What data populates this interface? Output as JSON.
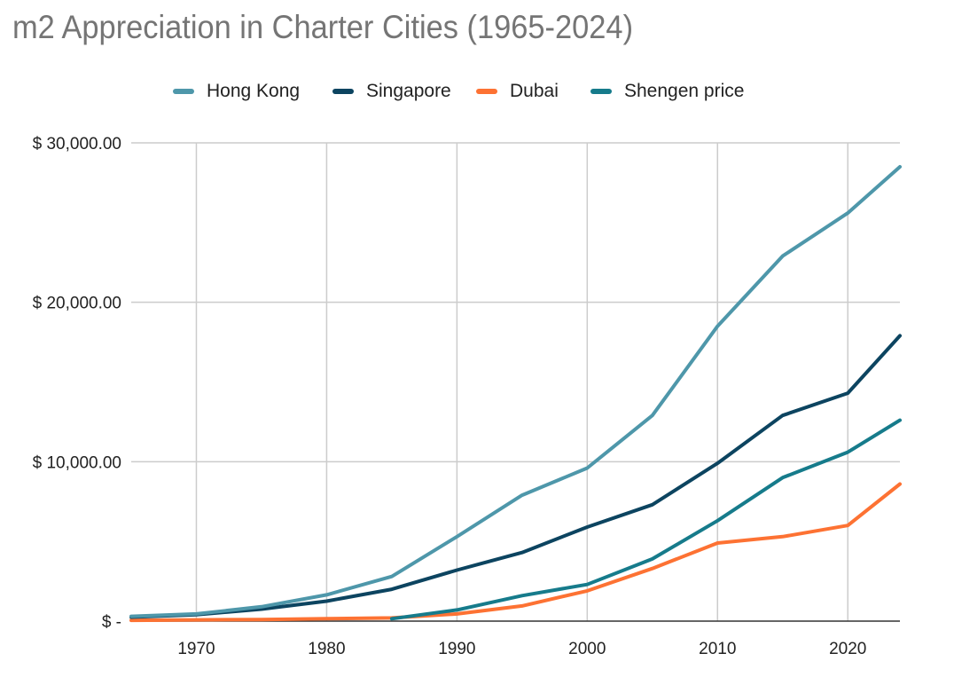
{
  "chart_data": {
    "type": "line",
    "title": "m2 Appreciation in Charter Cities (1965-2024)",
    "xlabel": "",
    "ylabel": "",
    "x": [
      1965,
      1970,
      1975,
      1980,
      1985,
      1990,
      1995,
      2000,
      2005,
      2010,
      2015,
      2020,
      2024
    ],
    "xlim": [
      1965,
      2024
    ],
    "ylim": [
      0,
      30000
    ],
    "xticks": [
      1970,
      1980,
      1990,
      2000,
      2010,
      2020
    ],
    "yticks": [
      0,
      10000,
      20000,
      30000
    ],
    "ytick_labels": [
      "$ -",
      "$ 10,000.00",
      "$ 20,000.00",
      "$ 30,000.00"
    ],
    "grid": true,
    "legend_position": "top",
    "series": [
      {
        "name": "Hong Kong",
        "color": "#4e97aa",
        "values": [
          300,
          450,
          900,
          1650,
          2800,
          5300,
          7900,
          9600,
          12900,
          18500,
          22900,
          25600,
          28500
        ]
      },
      {
        "name": "Singapore",
        "color": "#0c4460",
        "values": [
          250,
          400,
          750,
          1250,
          2000,
          3200,
          4300,
          5900,
          7300,
          9900,
          12900,
          14300,
          17900
        ]
      },
      {
        "name": "Dubai",
        "color": "#fd7233",
        "values": [
          50,
          80,
          100,
          150,
          200,
          450,
          950,
          1900,
          3300,
          4900,
          5300,
          6000,
          8600
        ]
      },
      {
        "name": "Shengen price",
        "color": "#167b8b",
        "values": [
          null,
          null,
          null,
          null,
          150,
          700,
          1600,
          2300,
          3900,
          6300,
          9000,
          10600,
          12600
        ]
      }
    ]
  }
}
